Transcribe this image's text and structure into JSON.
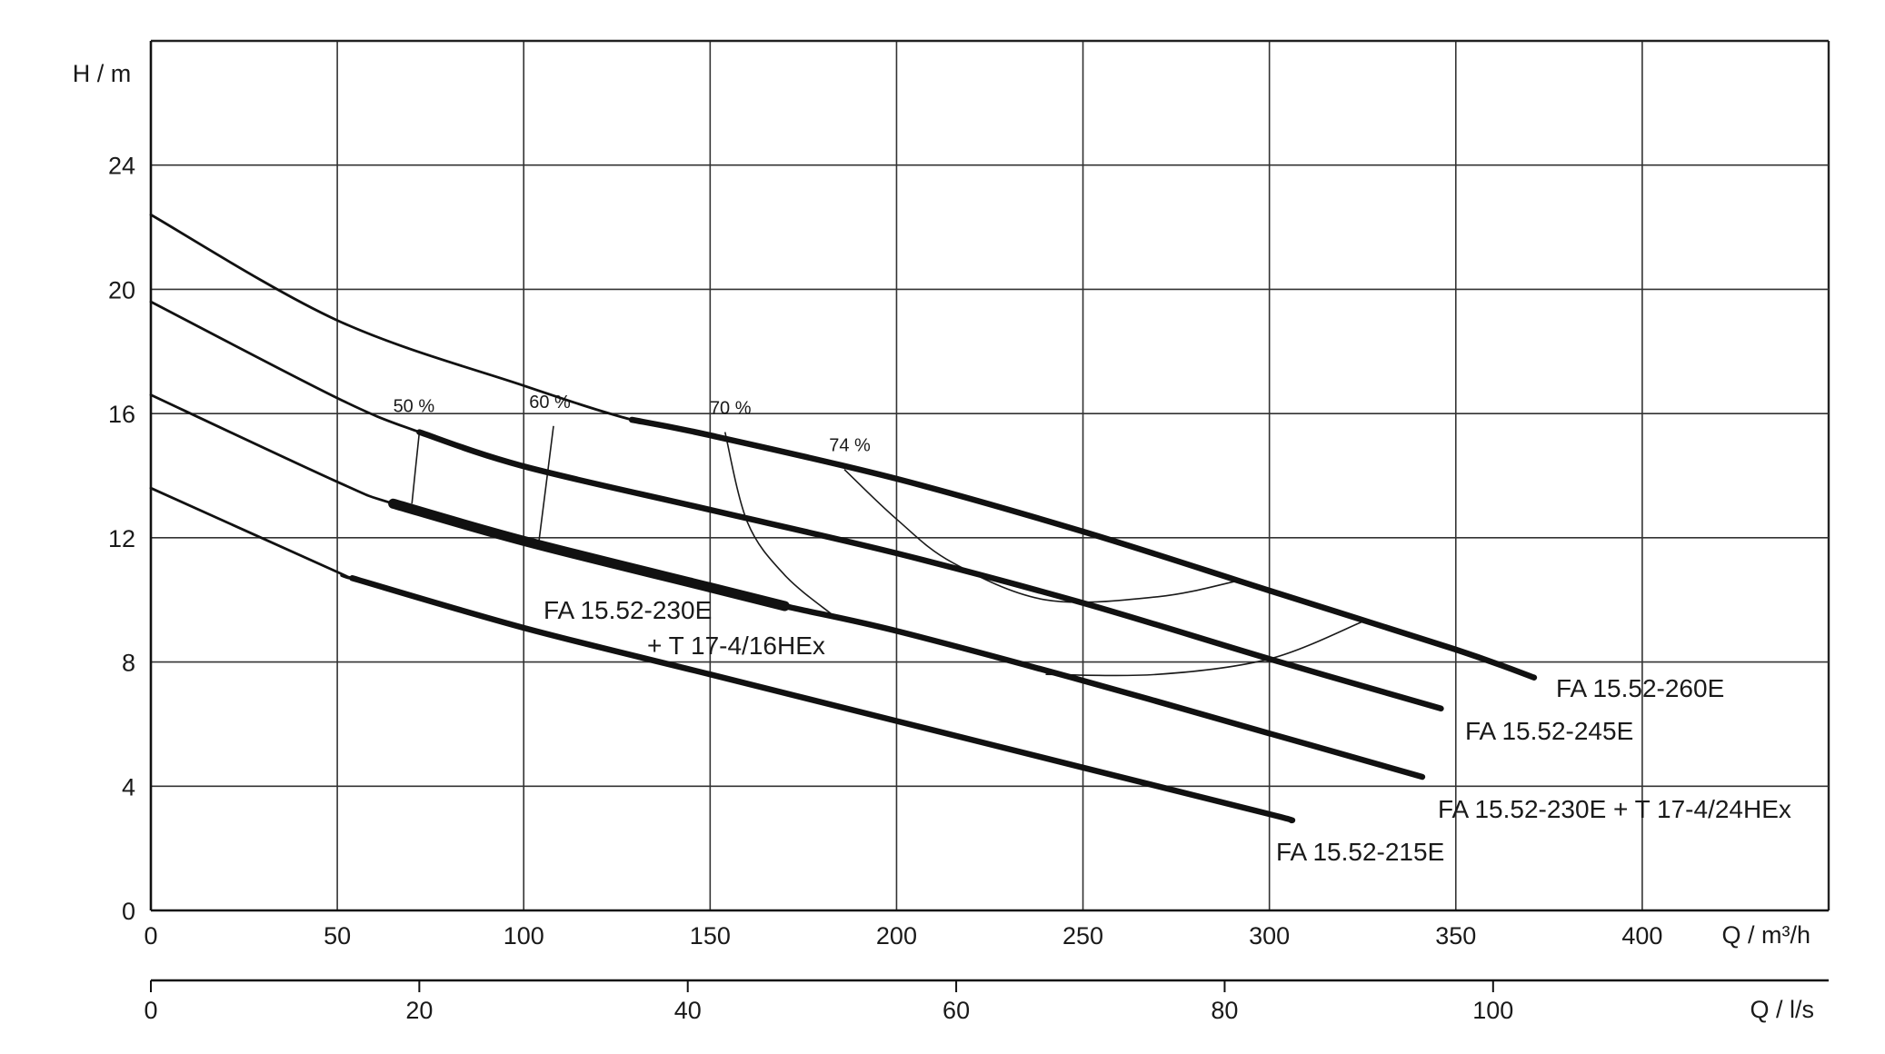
{
  "chart_data": {
    "type": "line",
    "ylabel": "H / m",
    "xlabel": "Q / m³/h",
    "x2label": "Q / l/s",
    "xlim": [
      0,
      450
    ],
    "ylim": [
      0,
      28
    ],
    "x_ticks": [
      0,
      50,
      100,
      150,
      200,
      250,
      300,
      350,
      400
    ],
    "y_ticks": [
      0,
      4,
      8,
      12,
      16,
      20,
      24
    ],
    "x2_ticks": [
      0,
      20,
      40,
      60,
      80,
      100
    ],
    "grid": true,
    "series": [
      {
        "name": "FA 15.52-260E",
        "x": [
          0,
          50,
          100,
          129,
          150,
          200,
          250,
          300,
          350,
          371
        ],
        "y": [
          22.4,
          19.0,
          16.9,
          15.8,
          15.3,
          13.9,
          12.2,
          10.3,
          8.4,
          7.5
        ],
        "bold_from": 129,
        "bold_to": 371
      },
      {
        "name": "FA 15.52-245E",
        "x": [
          0,
          50,
          72,
          100,
          150,
          200,
          250,
          300,
          346
        ],
        "y": [
          19.6,
          16.5,
          15.4,
          14.3,
          12.9,
          11.5,
          9.9,
          8.1,
          6.5
        ],
        "bold_from": 72,
        "bold_to": 346
      },
      {
        "name": "FA 15.52-230E + T 17-4/24HEx",
        "x": [
          0,
          50,
          65,
          100,
          150,
          170,
          200,
          250,
          300,
          341
        ],
        "y": [
          16.6,
          13.8,
          13.1,
          11.9,
          10.4,
          9.8,
          9.0,
          7.4,
          5.7,
          4.3
        ],
        "bold_from": 65,
        "bold_to": 341
      },
      {
        "name": "FA 15.52-215E",
        "x": [
          0,
          50,
          54,
          100,
          150,
          200,
          250,
          300,
          306
        ],
        "y": [
          13.6,
          10.9,
          10.7,
          9.1,
          7.6,
          6.1,
          4.6,
          3.1,
          2.9
        ],
        "bold_from": 54,
        "bold_to": 306
      }
    ],
    "overlay_segment": {
      "name": "FA 15.52-230E + T 17-4/16HEx",
      "label_lines": [
        "FA 15.52-230E",
        "+ T 17-4/16HEx"
      ],
      "x": [
        65,
        100,
        150,
        170
      ],
      "y": [
        13.1,
        11.9,
        10.4,
        9.8
      ]
    },
    "efficiency_lines": [
      {
        "label": "50 %",
        "x": [
          72,
          70
        ],
        "y": [
          15.4,
          13.1
        ]
      },
      {
        "label": "60 %",
        "x": [
          108,
          104
        ],
        "y": [
          15.6,
          11.8
        ]
      },
      {
        "label": "70 %",
        "x": [
          154,
          160,
          170,
          183
        ],
        "y": [
          15.4,
          12.5,
          10.8,
          9.5
        ]
      },
      {
        "label": "74 %",
        "x": [
          186,
          200,
          215,
          240,
          270,
          291
        ],
        "y": [
          14.2,
          12.6,
          11.2,
          10.0,
          10.1,
          10.6
        ]
      },
      {
        "label": "",
        "x": [
          240,
          270,
          300,
          325
        ],
        "y": [
          7.6,
          7.6,
          8.1,
          9.3
        ]
      }
    ],
    "labels": {
      "FA 15.52-260E": "FA 15.52-260E",
      "FA 15.52-245E": "FA 15.52-245E",
      "FA 15.52-230E + T 17-4/24HEx": "FA 15.52-230E + T 17-4/24HEx",
      "FA 15.52-215E": "FA 15.52-215E"
    }
  }
}
